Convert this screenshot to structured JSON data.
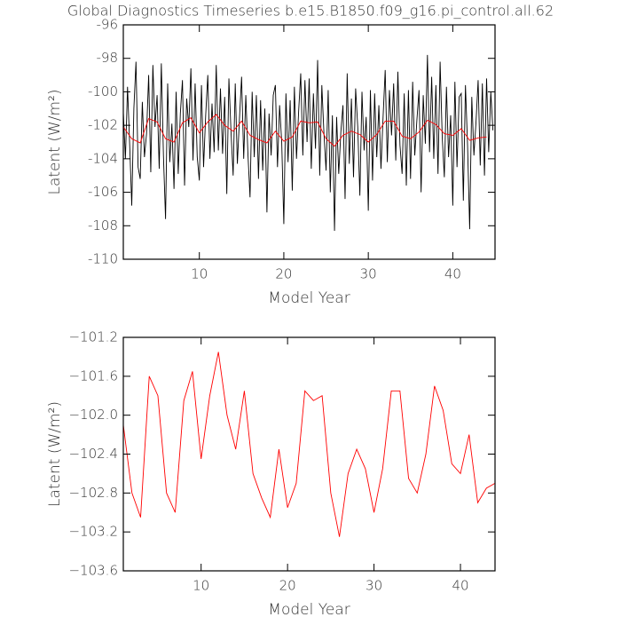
{
  "chart_data": [
    {
      "type": "line",
      "title": "Global Diagnostics Timeseries b.e15.B1850.f09_g16.pi_control.all.62",
      "xlabel": "Model Year",
      "ylabel": "Latent (W/m²)",
      "xlim": [
        1,
        45
      ],
      "xticks": [
        10,
        20,
        30,
        40
      ],
      "ylim": [
        -110,
        -96
      ],
      "yticks": [
        -110,
        -108,
        -106,
        -104,
        -102,
        -100,
        -98,
        -96
      ],
      "series": [
        {
          "color": "#000000",
          "x": [
            1,
            1.25,
            1.5,
            1.75,
            2,
            2.25,
            2.5,
            2.75,
            3,
            3.25,
            3.5,
            3.75,
            4,
            4.25,
            4.5,
            4.75,
            5,
            5.25,
            5.5,
            5.75,
            6,
            6.25,
            6.5,
            6.75,
            7,
            7.25,
            7.5,
            7.75,
            8,
            8.25,
            8.5,
            8.75,
            9,
            9.25,
            9.5,
            9.75,
            10,
            10.25,
            10.5,
            10.75,
            11,
            11.25,
            11.5,
            11.75,
            12,
            12.25,
            12.5,
            12.75,
            13,
            13.25,
            13.5,
            13.75,
            14,
            14.25,
            14.5,
            14.75,
            15,
            15.25,
            15.5,
            15.75,
            16,
            16.25,
            16.5,
            16.75,
            17,
            17.25,
            17.5,
            17.75,
            18,
            18.25,
            18.5,
            18.75,
            19,
            19.25,
            19.5,
            19.75,
            20,
            20.25,
            20.5,
            20.75,
            21,
            21.25,
            21.5,
            21.75,
            22,
            22.25,
            22.5,
            22.75,
            23,
            23.25,
            23.5,
            23.75,
            24,
            24.25,
            24.5,
            24.75,
            25,
            25.25,
            25.5,
            25.75,
            26,
            26.25,
            26.5,
            26.75,
            27,
            27.25,
            27.5,
            27.75,
            28,
            28.25,
            28.5,
            28.75,
            29,
            29.25,
            29.5,
            29.75,
            30,
            30.25,
            30.5,
            30.75,
            31,
            31.25,
            31.5,
            31.75,
            32,
            32.25,
            32.5,
            32.75,
            33,
            33.25,
            33.5,
            33.75,
            34,
            34.25,
            34.5,
            34.75,
            35,
            35.25,
            35.5,
            35.75,
            36,
            36.25,
            36.5,
            36.75,
            37,
            37.25,
            37.5,
            37.75,
            38,
            38.25,
            38.5,
            38.75,
            39,
            39.25,
            39.5,
            39.75,
            40,
            40.25,
            40.5,
            40.75,
            41,
            41.25,
            41.5,
            41.75,
            42,
            42.25,
            42.5,
            42.75,
            43,
            43.25,
            43.5,
            43.75,
            44,
            44.25,
            44.5,
            44.75
          ],
          "values": [
            -101.2,
            -104.0,
            -99.7,
            -103.1,
            -106.8,
            -101.0,
            -98.2,
            -104.5,
            -105.2,
            -100.6,
            -103.9,
            -102.5,
            -99.0,
            -104.8,
            -98.4,
            -102.1,
            -100.2,
            -104.6,
            -98.3,
            -103.8,
            -107.6,
            -99.5,
            -104.2,
            -101.9,
            -105.8,
            -100.0,
            -104.9,
            -101.3,
            -99.3,
            -105.6,
            -100.4,
            -102.1,
            -98.6,
            -104.1,
            -99.5,
            -103.9,
            -105.3,
            -99.6,
            -104.5,
            -101.4,
            -99.0,
            -104.0,
            -100.7,
            -103.6,
            -98.4,
            -103.5,
            -99.8,
            -103.7,
            -100.3,
            -106.1,
            -99.2,
            -102.4,
            -105.0,
            -99.5,
            -104.3,
            -101.6,
            -99.1,
            -104.0,
            -100.2,
            -103.7,
            -106.3,
            -100.0,
            -103.9,
            -100.2,
            -105.2,
            -100.5,
            -104.7,
            -101.0,
            -107.2,
            -101.3,
            -103.8,
            -100.2,
            -99.6,
            -104.5,
            -100.8,
            -103.0,
            -107.9,
            -100.1,
            -104.2,
            -100.5,
            -105.9,
            -99.7,
            -104.0,
            -101.2,
            -98.9,
            -103.8,
            -99.3,
            -103.0,
            -99.2,
            -104.6,
            -100.1,
            -103.4,
            -98.1,
            -105.0,
            -99.6,
            -102.5,
            -104.7,
            -99.9,
            -106.0,
            -101.4,
            -108.3,
            -101.5,
            -104.9,
            -102.4,
            -100.8,
            -106.4,
            -98.9,
            -104.3,
            -100.4,
            -105.1,
            -99.8,
            -102.1,
            -106.2,
            -100.0,
            -103.5,
            -101.5,
            -107.1,
            -99.9,
            -105.3,
            -100.1,
            -103.9,
            -100.8,
            -104.6,
            -101.5,
            -98.7,
            -104.2,
            -99.9,
            -102.6,
            -99.5,
            -104.1,
            -98.8,
            -103.2,
            -104.9,
            -100.1,
            -105.6,
            -99.9,
            -105.2,
            -99.4,
            -103.8,
            -101.7,
            -99.9,
            -106.0,
            -100.2,
            -103.1,
            -97.8,
            -103.6,
            -99.1,
            -104.0,
            -99.6,
            -104.9,
            -98.2,
            -102.7,
            -105.1,
            -99.7,
            -103.9,
            -101.4,
            -106.8,
            -99.4,
            -104.5,
            -100.3,
            -100.1,
            -106.5,
            -99.6,
            -103.2,
            -108.2,
            -100.3,
            -103.8,
            -101.8,
            -99.3,
            -104.4,
            -99.5,
            -105.0,
            -99.2,
            -103.6,
            -100.0,
            -102.3
          ]
        },
        {
          "color": "#ff0000",
          "x": [
            1,
            2,
            3,
            4,
            5,
            6,
            7,
            8,
            9,
            10,
            11,
            12,
            13,
            14,
            15,
            16,
            17,
            18,
            19,
            20,
            21,
            22,
            23,
            24,
            25,
            26,
            27,
            28,
            29,
            30,
            31,
            32,
            33,
            34,
            35,
            36,
            37,
            38,
            39,
            40,
            41,
            42,
            43,
            44
          ],
          "values": [
            -102.1,
            -102.8,
            -103.05,
            -101.6,
            -101.8,
            -102.8,
            -103.0,
            -101.85,
            -101.55,
            -102.45,
            -101.8,
            -101.35,
            -102.0,
            -102.35,
            -101.75,
            -102.6,
            -102.85,
            -103.05,
            -102.35,
            -102.95,
            -102.7,
            -101.75,
            -101.85,
            -101.8,
            -102.8,
            -103.25,
            -102.6,
            -102.35,
            -102.55,
            -103.0,
            -102.55,
            -101.75,
            -101.75,
            -102.65,
            -102.8,
            -102.4,
            -101.7,
            -101.95,
            -102.5,
            -102.6,
            -102.2,
            -102.9,
            -102.75,
            -102.7
          ]
        }
      ]
    },
    {
      "type": "line",
      "xlabel": "Model Year",
      "ylabel": "Latent (W/m²)",
      "xlim": [
        1,
        44
      ],
      "xticks": [
        10,
        20,
        30,
        40
      ],
      "ylim": [
        -103.6,
        -101.2
      ],
      "yticks": [
        {
          "value": -103.6,
          "label": "−103.6"
        },
        {
          "value": -103.2,
          "label": "−103.2"
        },
        {
          "value": -102.8,
          "label": "−102.8"
        },
        {
          "value": -102.4,
          "label": "−102.4"
        },
        {
          "value": -102.0,
          "label": "−102.0"
        },
        {
          "value": -101.6,
          "label": "−101.6"
        },
        {
          "value": -101.2,
          "label": "−101.2"
        }
      ],
      "series": [
        {
          "color": "#ff0000",
          "x": [
            1,
            2,
            3,
            4,
            5,
            6,
            7,
            8,
            9,
            10,
            11,
            12,
            13,
            14,
            15,
            16,
            17,
            18,
            19,
            20,
            21,
            22,
            23,
            24,
            25,
            26,
            27,
            28,
            29,
            30,
            31,
            32,
            33,
            34,
            35,
            36,
            37,
            38,
            39,
            40,
            41,
            42,
            43,
            44
          ],
          "values": [
            -102.1,
            -102.8,
            -103.05,
            -101.6,
            -101.8,
            -102.8,
            -103.0,
            -101.85,
            -101.55,
            -102.45,
            -101.8,
            -101.35,
            -102.0,
            -102.35,
            -101.75,
            -102.6,
            -102.85,
            -103.05,
            -102.35,
            -102.95,
            -102.7,
            -101.75,
            -101.85,
            -101.8,
            -102.8,
            -103.25,
            -102.6,
            -102.35,
            -102.55,
            -103.0,
            -102.55,
            -101.75,
            -101.75,
            -102.65,
            -102.8,
            -102.4,
            -101.7,
            -101.95,
            -102.5,
            -102.6,
            -102.2,
            -102.9,
            -102.75,
            -102.7
          ]
        }
      ]
    }
  ]
}
